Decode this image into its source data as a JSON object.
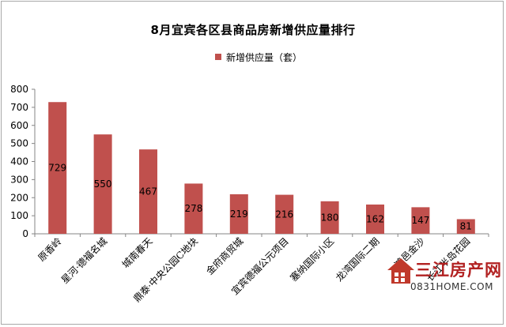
{
  "chart_data": {
    "type": "bar",
    "title": "8月宜宾各区县商品房新增供应量排行",
    "legend": {
      "position": "top",
      "label": "新增供应量（套）"
    },
    "categories": [
      "原香岭",
      "星河·德福名城",
      "城南春天",
      "鼎泰·中央公园C地块",
      "金府商贸城",
      "宜宾德福公元项目",
      "塞纳国际小区",
      "龙湾国际二期",
      "鸿邑金沙",
      "长江半岛花园"
    ],
    "series": [
      {
        "name": "新增供应量（套）",
        "values": [
          729,
          550,
          467,
          278,
          219,
          216,
          180,
          162,
          147,
          81
        ]
      }
    ],
    "ylim": [
      0,
      800
    ],
    "yticks": [
      0,
      100,
      200,
      300,
      400,
      500,
      600,
      700,
      800
    ],
    "grid": false,
    "colors": {
      "bar": "#c0504d"
    }
  },
  "watermark": {
    "name": "三江房产网",
    "url": "0831HOME.COM"
  }
}
